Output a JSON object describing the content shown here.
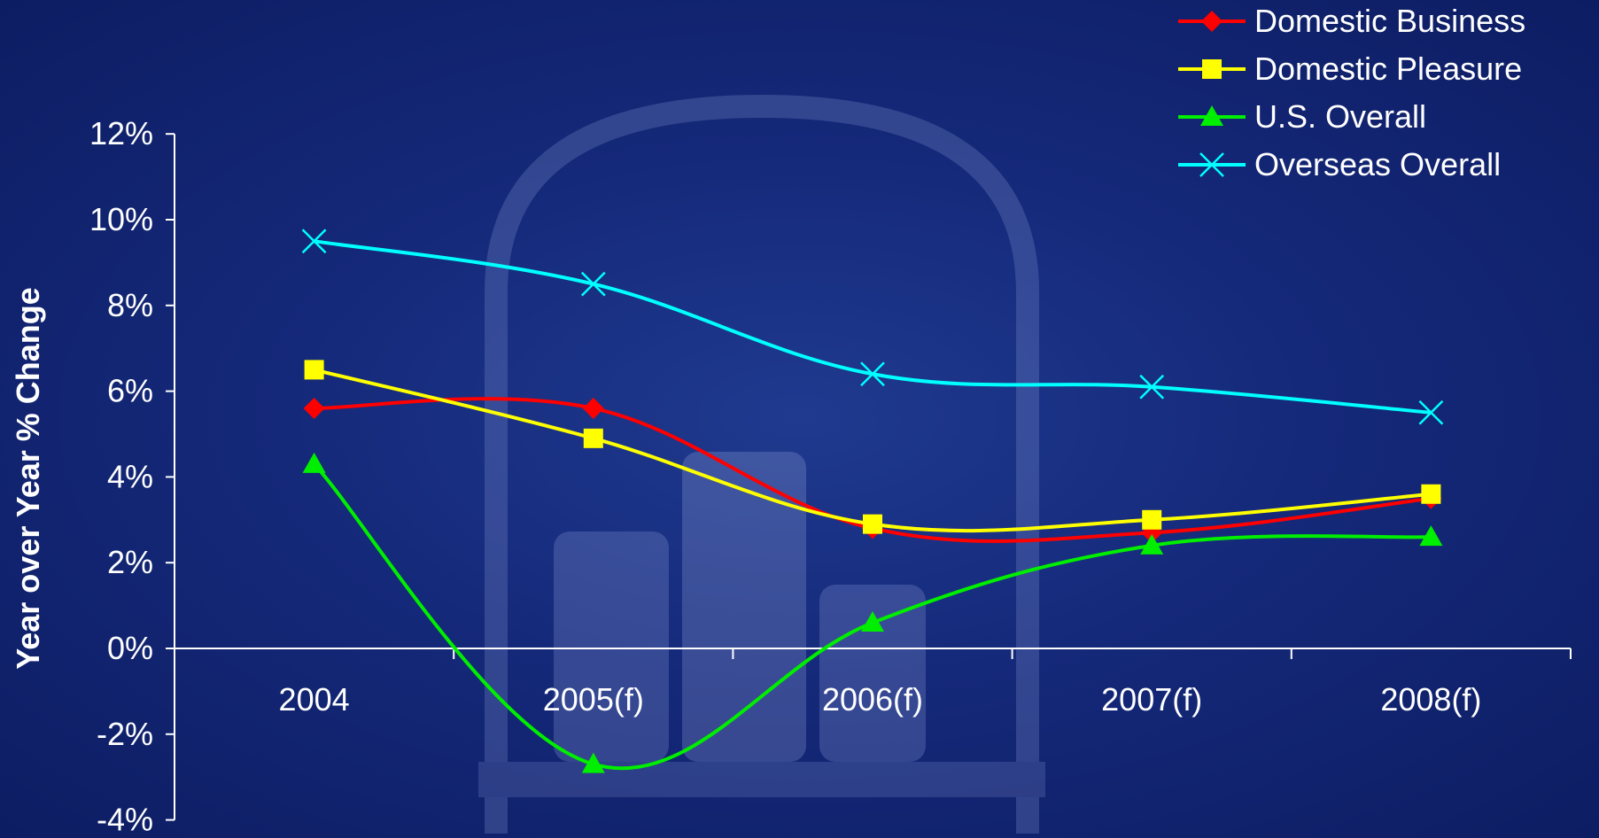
{
  "chart_data": {
    "type": "line",
    "title": "",
    "xlabel": "",
    "ylabel": "Year over Year % Change",
    "categories": [
      "2004",
      "2005(f)",
      "2006(f)",
      "2007(f)",
      "2008(f)"
    ],
    "ylim": [
      -4,
      12
    ],
    "yticks": [
      "12%",
      "10%",
      "8%",
      "6%",
      "4%",
      "2%",
      "0%",
      "-2%",
      "-4%"
    ],
    "ytick_values": [
      12,
      10,
      8,
      6,
      4,
      2,
      0,
      -2,
      -4
    ],
    "grid": false,
    "legend_position": "top-right",
    "series": [
      {
        "name": "Domestic Business",
        "values": [
          5.6,
          5.6,
          2.8,
          2.7,
          3.5
        ],
        "color": "#ff0000",
        "marker": "diamond"
      },
      {
        "name": "Domestic Pleasure",
        "values": [
          6.5,
          4.9,
          2.9,
          3.0,
          3.6
        ],
        "color": "#ffff00",
        "marker": "square"
      },
      {
        "name": "U.S. Overall",
        "values": [
          4.3,
          -2.7,
          0.6,
          2.4,
          2.6
        ],
        "color": "#00ee00",
        "marker": "triangle"
      },
      {
        "name": "Overseas Overall",
        "values": [
          9.5,
          8.5,
          6.4,
          6.1,
          5.5
        ],
        "color": "#00ffff",
        "marker": "x"
      }
    ]
  }
}
